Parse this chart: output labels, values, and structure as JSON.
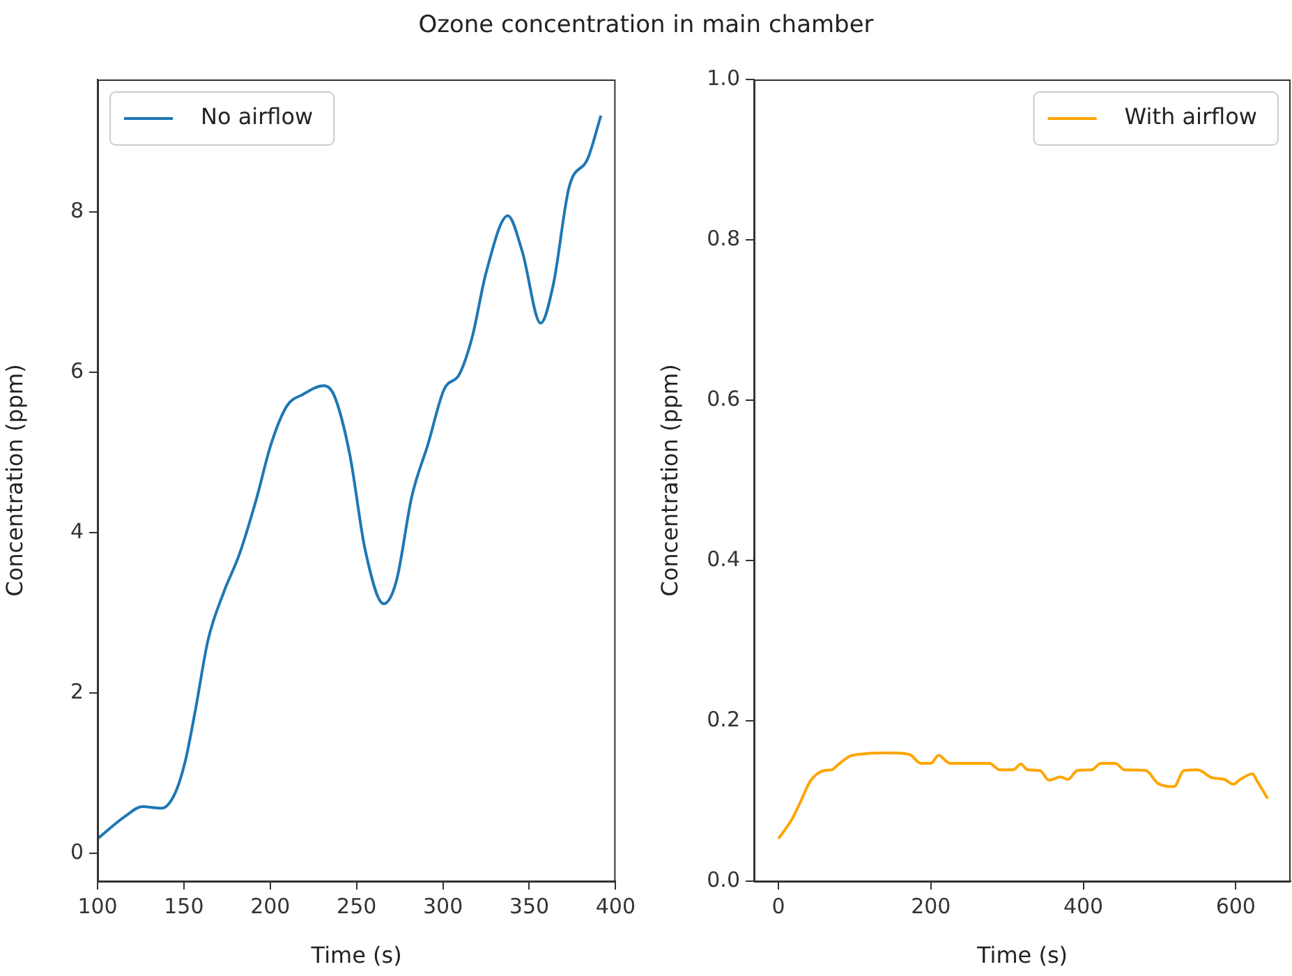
{
  "chart_data": [
    {
      "type": "line",
      "title": "Ozone concentration in main chamber",
      "xlabel": "Time (s)",
      "ylabel": "Concentration (ppm)",
      "legend": "top left",
      "grid": false,
      "xlim": [
        100,
        400
      ],
      "xticks": [
        100,
        150,
        200,
        250,
        300,
        350,
        400
      ],
      "ylim": [
        -0.35,
        9.65
      ],
      "yticks": [
        0,
        2,
        4,
        6,
        8
      ],
      "series": [
        {
          "name": "No airflow",
          "color": "#1f77b4",
          "x": [
            100,
            116,
            126,
            137,
            144.5,
            150.6,
            156.7,
            164,
            173,
            182,
            191.5,
            200.6,
            209.7,
            218.8,
            231,
            237,
            246,
            255,
            265.7,
            273,
            282,
            291.5,
            300.6,
            309.7,
            317,
            325,
            337.6,
            346,
            356.6,
            364,
            373,
            384,
            391.5
          ],
          "values": [
            0.18,
            0.46,
            0.58,
            0.56,
            0.73,
            1.13,
            1.79,
            2.66,
            3.25,
            3.72,
            4.38,
            5.11,
            5.58,
            5.72,
            5.83,
            5.71,
            4.98,
            3.78,
            3.11,
            3.39,
            4.45,
            5.11,
            5.78,
            5.98,
            6.44,
            7.24,
            7.95,
            7.5,
            6.61,
            7.1,
            8.3,
            8.67,
            9.2
          ]
        }
      ]
    },
    {
      "type": "line",
      "xlabel": "Time (s)",
      "ylabel": "Concentration (ppm)",
      "legend": "top right",
      "grid": false,
      "xlim": [
        -32,
        672
      ],
      "xticks": [
        0,
        200,
        400,
        600
      ],
      "ylim": [
        0,
        1
      ],
      "yticks": [
        {
          "value": 0,
          "label": "0.0"
        },
        {
          "value": 0.2,
          "label": "0.2"
        },
        {
          "value": 0.4,
          "label": "0.4"
        },
        {
          "value": 0.6,
          "label": "0.6"
        },
        {
          "value": 0.8,
          "label": "0.8"
        },
        {
          "value": 1,
          "label": "1.0"
        }
      ],
      "series": [
        {
          "name": "With airflow",
          "color": "#ffa500",
          "x": [
            0,
            17,
            29,
            42,
            60,
            70,
            79,
            97,
            147,
            172,
            187,
            200,
            210,
            225,
            277,
            290,
            308,
            318,
            327,
            343,
            355,
            370,
            380,
            392,
            411,
            423,
            442,
            454,
            482,
            498,
            519,
            532,
            550,
            569,
            585,
            597,
            606,
            622,
            628,
            642
          ],
          "values": [
            0.053,
            0.076,
            0.099,
            0.125,
            0.138,
            0.139,
            0.146,
            0.157,
            0.16,
            0.158,
            0.147,
            0.147,
            0.157,
            0.147,
            0.147,
            0.139,
            0.139,
            0.146,
            0.139,
            0.138,
            0.126,
            0.13,
            0.127,
            0.138,
            0.139,
            0.147,
            0.147,
            0.139,
            0.138,
            0.122,
            0.118,
            0.138,
            0.139,
            0.129,
            0.127,
            0.121,
            0.127,
            0.134,
            0.125,
            0.103
          ]
        }
      ]
    }
  ]
}
